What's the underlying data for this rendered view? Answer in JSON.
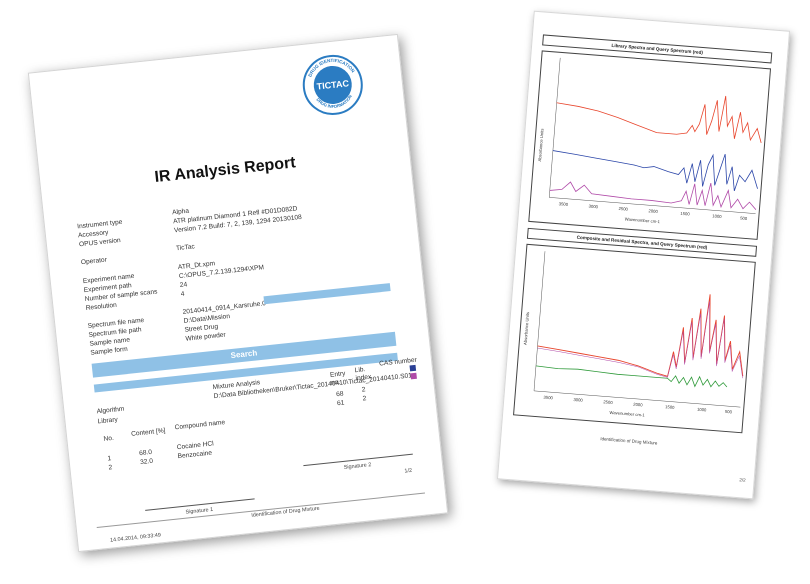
{
  "page1": {
    "title": "IR Analysis Report",
    "seal": {
      "brand": "TICTAC",
      "top_arc": "DRUG IDENTIFICATION",
      "bottom_arc": "DRUG INFORMATION",
      "color": "#2b7cc2"
    },
    "fields": [
      {
        "label": "Instrument type",
        "value": "Alpha"
      },
      {
        "label": "Accessory",
        "value": "ATR platinum Diamond 1 Refl #D01D082D"
      },
      {
        "label": "OPUS version",
        "value": "Version 7.2 Build: 7, 2, 139, 1294 20130108"
      },
      {
        "label": "Operator",
        "value": "TicTac"
      },
      {
        "label": "Experiment name",
        "value": "ATR_Dt.xpm"
      },
      {
        "label": "Experiment path",
        "value": "C:\\OPUS_7.2.139.1294\\XPM"
      },
      {
        "label": "Number of sample scans",
        "value": "24"
      },
      {
        "label": "Resolution",
        "value": "4"
      },
      {
        "label": "Spectrum file name",
        "value": "20140414_0914_Karsruhe.0"
      },
      {
        "label": "Spectrum file path",
        "value": "D:\\Data\\Mission"
      },
      {
        "label": "Sample name",
        "value": "Street Drug"
      },
      {
        "label": "Sample form",
        "value": "White powder"
      }
    ],
    "search_heading": "Search",
    "algorithm_label": "Algorithm",
    "algorithm_value": "Mixture Analysis",
    "library_label": "Library",
    "library_value": "D:\\Data Bibliotheken\\Bruker\\Tictac_20140410\\Tictac_20140410.S01",
    "columns": {
      "no": "No.",
      "content": "Content [%]",
      "compound": "Compound name",
      "entry": "Entry no.",
      "lib": "Lib. index",
      "cas": "CAS number"
    },
    "rows": [
      {
        "no": "1",
        "content": "68.0",
        "compound": "Cocaine HCl",
        "entry": "68",
        "lib": "2",
        "color": "#2a3f95"
      },
      {
        "no": "2",
        "content": "32.0",
        "compound": "Benzocaine",
        "entry": "61",
        "lib": "2",
        "color": "#b04aa8"
      }
    ],
    "signature1": "Signature 1",
    "signature2": "Signature 2",
    "footer": "Identification of Drug Mixture",
    "page_no": "1/2",
    "timestamp": "14.04.2014, 09:33:49"
  },
  "page2": {
    "top_title": "Library Spectra and Query Spectrum (red)",
    "bottom_title": "Composite and Residual Spectra, and Query Spectrum (red)",
    "ylabel": "Absorbance Units",
    "xlabel": "Wavenumber cm-1",
    "top_xticks": [
      "3500",
      "3000",
      "2500",
      "2000",
      "1500",
      "1000",
      "500"
    ],
    "bottom_xticks": [
      "3500",
      "3000",
      "2500",
      "2000",
      "1500",
      "1000",
      "500"
    ],
    "top_yticks": [
      "0.05",
      "0.15",
      "0.25",
      "0.05",
      "0.15",
      "0.25",
      "0.05",
      "0.15",
      "0.25"
    ],
    "bottom_yticks": [
      "0.00",
      "0.10",
      "0.20",
      "0.30",
      "0.40"
    ],
    "footer": "Identification of Drug Mixture",
    "page_no": "2/2",
    "colors": {
      "query": "#e8452c",
      "cocaine": "#2a45a8",
      "benzocaine": "#b04aa8",
      "residual": "#2f9a3a"
    }
  }
}
